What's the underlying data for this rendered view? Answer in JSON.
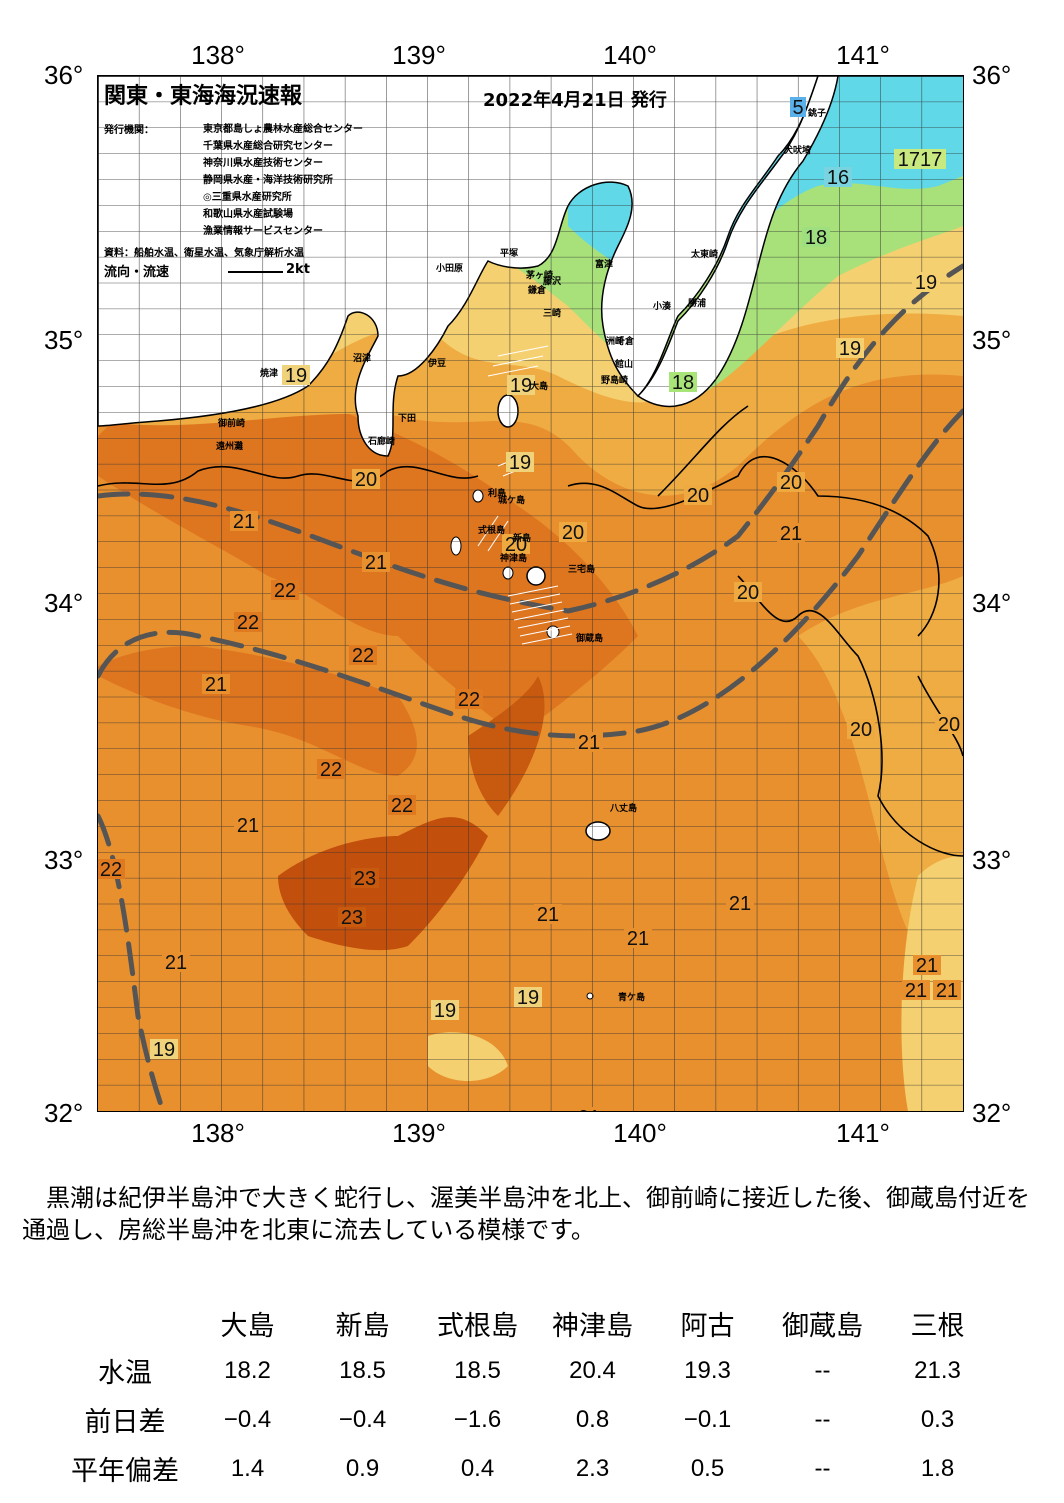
{
  "map": {
    "title": "関東・東海海況速報",
    "date": "2022年4月21日 発行",
    "issuer_label": "発行機関：",
    "issuers": [
      "東京都島しょ農林水産総合センター",
      "千葉県水産総合研究センター",
      "神奈川県水産技術センター",
      "静岡県水産・海洋技術研究所",
      "◎三重県水産研究所",
      "和歌山県水産試験場",
      "漁業情報サービスセンター"
    ],
    "source": "資料：船舶水温、衛星水温、気象庁解析水温",
    "flow_legend": "流向・流速",
    "flow_unit": "2kt",
    "lon_labels": [
      "138°",
      "139°",
      "140°",
      "141°"
    ],
    "lat_labels": [
      "36°",
      "35°",
      "34°",
      "33°",
      "32°"
    ],
    "place_labels": [
      "小田原",
      "平塚",
      "茅ヶ崎",
      "藤沢",
      "鎌倉",
      "三崎",
      "富津",
      "館山",
      "千倉",
      "野島崎",
      "銚子",
      "犬吠埼",
      "太東崎",
      "勝浦",
      "小湊",
      "大島",
      "利島",
      "新島",
      "式根島",
      "神津島",
      "三宅島",
      "御蔵島",
      "八丈島",
      "青ケ島",
      "沼津",
      "伊豆",
      "下田",
      "石廊崎",
      "焼津",
      "御前崎",
      "遠州灘",
      "城ケ島",
      "洲崎"
    ],
    "iso_labels": [
      {
        "t": "5",
        "c": "#5ab0e8"
      },
      {
        "t": "1717",
        "c": "#c8e880"
      },
      {
        "t": "16",
        "c": "#7ad4e0"
      },
      {
        "t": "18",
        "c": "#9ee080"
      },
      {
        "t": "19",
        "c": "#f5d070"
      },
      {
        "t": "19",
        "c": "#f5d070"
      },
      {
        "t": "18",
        "c": "#a8e478"
      },
      {
        "t": "19",
        "c": "#f0d27a"
      },
      {
        "t": "19",
        "c": "#f0d27a"
      },
      {
        "t": "19",
        "c": "#f0d27a"
      },
      {
        "t": "20",
        "c": "#eeaa40"
      },
      {
        "t": "20",
        "c": "#eeaa40"
      },
      {
        "t": "20",
        "c": "#eeaa40"
      },
      {
        "t": "21",
        "c": "#e8902e"
      },
      {
        "t": "20",
        "c": "#eeaa40"
      },
      {
        "t": "21",
        "c": "#e8902e"
      },
      {
        "t": "20",
        "c": "#eeaa40"
      },
      {
        "t": "21",
        "c": "#e8902e"
      },
      {
        "t": "20",
        "c": "#eeaa40"
      },
      {
        "t": "22",
        "c": "#e07a20"
      },
      {
        "t": "22",
        "c": "#e07a20"
      },
      {
        "t": "22",
        "c": "#e07a20"
      },
      {
        "t": "21",
        "c": "#e8902e"
      },
      {
        "t": "22",
        "c": "#e07a20"
      },
      {
        "t": "20",
        "c": "#eeaa40"
      },
      {
        "t": "20",
        "c": "#eeaa40"
      },
      {
        "t": "21",
        "c": "#e8902e"
      },
      {
        "t": "22",
        "c": "#e07a20"
      },
      {
        "t": "22",
        "c": "#e07a20"
      },
      {
        "t": "21",
        "c": "#e8902e"
      },
      {
        "t": "22",
        "c": "#e07a20"
      },
      {
        "t": "23",
        "c": "#c85a10"
      },
      {
        "t": "23",
        "c": "#c85a10"
      },
      {
        "t": "21",
        "c": "#e8902e"
      },
      {
        "t": "21",
        "c": "#e8902e"
      },
      {
        "t": "21",
        "c": "#e8902e"
      },
      {
        "t": "21",
        "c": "#e8902e"
      },
      {
        "t": "19",
        "c": "#f0d27a"
      },
      {
        "t": "19",
        "c": "#f0d27a"
      },
      {
        "t": "19",
        "c": "#f0d27a"
      },
      {
        "t": "21",
        "c": "#e8902e"
      },
      {
        "t": "21",
        "c": "#e8902e"
      },
      {
        "t": "21",
        "c": "#e8902e"
      },
      {
        "t": "21",
        "c": "#e8902e"
      }
    ],
    "colors": {
      "t23": "#c2500c",
      "t22": "#de7620",
      "t21": "#e8902e",
      "t20": "#efac42",
      "t19": "#f5d070",
      "t18": "#a8e07a",
      "t17": "#7ed67a",
      "t16": "#60d8e8",
      "land": "#ffffff",
      "kuroshio": "#505050"
    }
  },
  "summary": "黒潮は紀伊半島沖で大きく蛇行し、渥美半島沖を北上、御前崎に接近した後、御蔵島付近を通過し、房総半島沖を北東に流去している模様です。",
  "table": {
    "columns": [
      "大島",
      "新島",
      "式根島",
      "神津島",
      "阿古",
      "御蔵島",
      "三根"
    ],
    "rows": [
      {
        "label": "水温",
        "values": [
          "18.2",
          "18.5",
          "18.5",
          "20.4",
          "19.3",
          "--",
          "21.3"
        ]
      },
      {
        "label": "前日差",
        "values": [
          "−0.4",
          "−0.4",
          "−1.6",
          "0.8",
          "−0.1",
          "--",
          "0.3"
        ]
      },
      {
        "label": "平年偏差",
        "values": [
          "1.4",
          "0.9",
          "0.4",
          "2.3",
          "0.5",
          "--",
          "1.8"
        ]
      }
    ]
  }
}
